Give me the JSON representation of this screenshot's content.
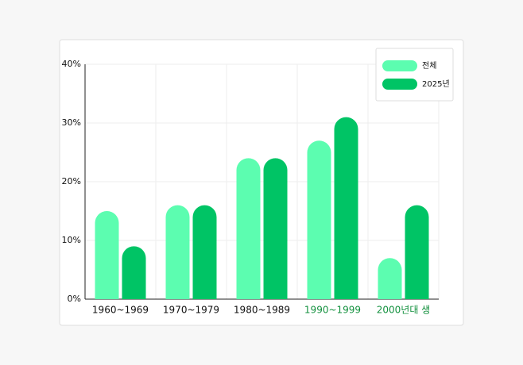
{
  "chart_data": {
    "type": "bar",
    "categories": [
      "1960~1969",
      "1970~1979",
      "1980~1989",
      "1990~1999",
      "2000년대 생"
    ],
    "category_colors": [
      "#111111",
      "#111111",
      "#111111",
      "#14913f",
      "#14913f"
    ],
    "series": [
      {
        "name": "전체",
        "color": "#5cfdb0",
        "values": [
          15,
          16,
          24,
          27,
          7
        ]
      },
      {
        "name": "2025년",
        "color": "#00c465",
        "values": [
          9,
          16,
          24,
          31,
          16
        ]
      }
    ],
    "ylim": [
      0,
      40
    ],
    "yticks": [
      {
        "value": 0,
        "label": "0%"
      },
      {
        "value": 10,
        "label": "10%"
      },
      {
        "value": 20,
        "label": "20%"
      },
      {
        "value": 30,
        "label": "30%"
      },
      {
        "value": 40,
        "label": "40%"
      }
    ],
    "grid": true,
    "legend": "top-right"
  }
}
